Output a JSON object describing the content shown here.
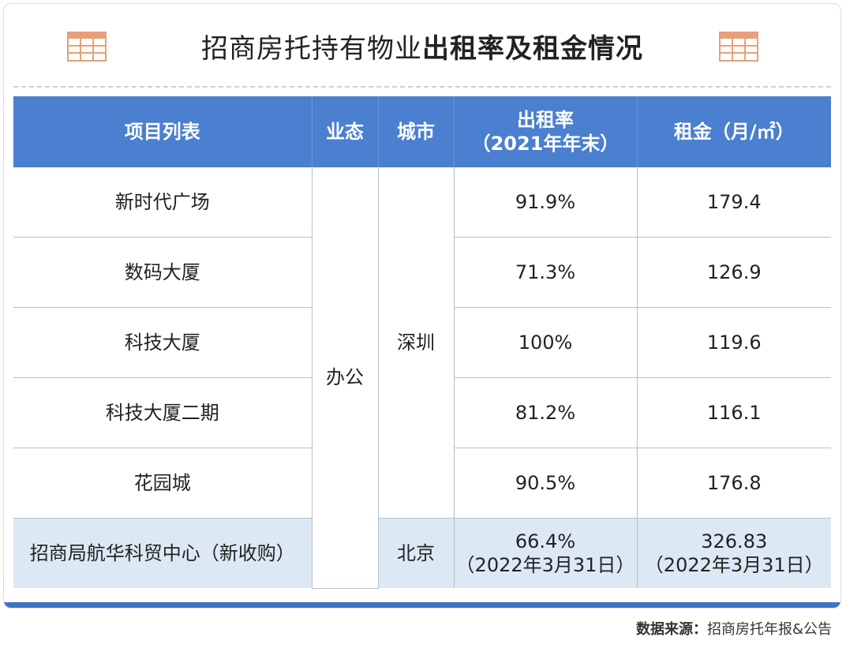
{
  "title": {
    "normal": "招商房托持有物业",
    "bold": "出租率及租金情况"
  },
  "table": {
    "headers": {
      "project": "项目列表",
      "type": "业态",
      "city": "城市",
      "occupancy_line1": "出租率",
      "occupancy_line2": "（2021年年末）",
      "rent": "租金（月/㎡）"
    },
    "office_type": "办公",
    "shenzhen_city": "深圳",
    "rows": [
      {
        "project": "新时代广场",
        "occupancy": "91.9%",
        "rent": "179.4"
      },
      {
        "project": "数码大厦",
        "occupancy": "71.3%",
        "rent": "126.9"
      },
      {
        "project": "科技大厦",
        "occupancy": "100%",
        "rent": "119.6"
      },
      {
        "project": "科技大厦二期",
        "occupancy": "81.2%",
        "rent": "116.1"
      },
      {
        "project": "花园城",
        "occupancy": "90.5%",
        "rent": "176.8"
      }
    ],
    "new_row": {
      "project": "招商局航华科贸中心（新收购）",
      "city": "北京",
      "occupancy": "66.4%",
      "occupancy_note": "（2022年3月31日）",
      "rent": "326.83",
      "rent_note": "（2022年3月31日）"
    }
  },
  "source": {
    "label": "数据来源：",
    "text": "招商房托年报&公告"
  },
  "colors": {
    "header_bg": "#4b7fcf",
    "highlight_row": "#dde8f5",
    "icon_orange": "#e8a07a",
    "bottom_bar": "#3f72c4"
  }
}
